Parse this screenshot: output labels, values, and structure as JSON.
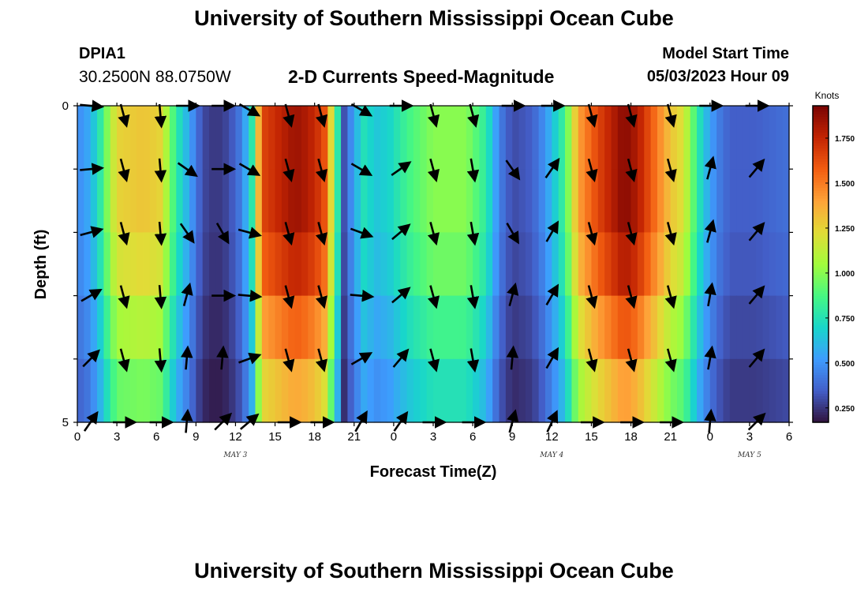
{
  "header": {
    "title": "University of Southern Mississippi Ocean Cube",
    "station_id": "DPIA1",
    "station_coords": "30.2500N  88.0750W",
    "subtitle": "2-D Currents Speed-Magnitude",
    "model_start_label": "Model Start Time",
    "model_start_value": "05/03/2023 Hour 09"
  },
  "footer": {
    "title": "University of Southern Mississippi Ocean Cube"
  },
  "chart_data": {
    "type": "heatmap",
    "title": "2-D Currents Speed-Magnitude",
    "xlabel": "Forecast Time(Z)",
    "ylabel": "Depth (ft)",
    "x_ticks": [
      "0",
      "3",
      "6",
      "9",
      "12",
      "15",
      "18",
      "21",
      "0",
      "3",
      "6",
      "9",
      "12",
      "15",
      "18",
      "21",
      "0",
      "3",
      "6"
    ],
    "x_range_hours": [
      0,
      54
    ],
    "date_labels": [
      {
        "text": "MAY 3",
        "hour": 12
      },
      {
        "text": "MAY 4",
        "hour": 36
      },
      {
        "text": "MAY 5",
        "hour": 51
      }
    ],
    "y_ticks": [
      "0",
      "5"
    ],
    "y_range": [
      0,
      5
    ],
    "depth_bands": 5,
    "colorbar": {
      "unit": "Knots",
      "range": [
        0.17,
        1.93
      ],
      "ticks": [
        "0.250",
        "0.500",
        "0.750",
        "1.000",
        "1.250",
        "1.500",
        "1.750"
      ],
      "tick_values": [
        0.25,
        0.5,
        0.75,
        1.0,
        1.25,
        1.5,
        1.75
      ],
      "colormap": "turbo"
    },
    "speed_profile_hours": [
      0,
      0.5,
      1.5,
      2.3,
      3,
      5,
      6.3,
      7.5,
      9.5,
      10.5,
      11.5,
      12.5,
      13.3,
      14,
      16.5,
      17.5,
      18.7,
      19.5,
      20.2,
      21,
      21.7,
      22.7,
      23.7,
      25,
      27,
      29.5,
      31,
      32,
      33,
      34.5,
      35.5,
      37,
      38,
      39.5,
      41.5,
      42.5,
      43.5,
      45,
      46,
      46.5,
      47.5,
      48.5,
      49.5,
      51.5,
      54
    ],
    "speed_profile_knots": [
      0.5,
      0.5,
      0.7,
      1.0,
      1.25,
      1.3,
      1.25,
      0.8,
      0.3,
      0.25,
      0.3,
      0.45,
      0.8,
      1.65,
      1.85,
      1.8,
      1.65,
      1.05,
      0.3,
      0.55,
      0.75,
      0.65,
      0.7,
      0.85,
      1.0,
      1.0,
      0.8,
      0.45,
      0.3,
      0.35,
      0.5,
      0.85,
      1.4,
      1.65,
      1.9,
      1.8,
      1.6,
      1.3,
      1.2,
      1.0,
      0.65,
      0.45,
      0.35,
      0.35,
      0.4
    ],
    "depth_factors": [
      1.0,
      1.0,
      0.95,
      0.85,
      0.75
    ],
    "vector_hours": [
      1,
      3.5,
      6.3,
      8.3,
      11,
      13,
      16,
      18.5,
      21.5,
      24.5,
      27,
      30,
      33,
      36,
      39,
      42,
      45,
      48,
      51.5
    ],
    "vector_angles_deg": [
      [
        5,
        75,
        85,
        0,
        0,
        30,
        75,
        75,
        30,
        0,
        75,
        75,
        0,
        0,
        75,
        75,
        75,
        0,
        0
      ],
      [
        -5,
        75,
        85,
        35,
        0,
        30,
        75,
        75,
        30,
        -35,
        75,
        80,
        55,
        -55,
        75,
        75,
        75,
        -75,
        -50
      ],
      [
        -15,
        75,
        85,
        55,
        60,
        15,
        75,
        75,
        20,
        -40,
        75,
        80,
        60,
        -60,
        75,
        75,
        75,
        -75,
        -50
      ],
      [
        -30,
        75,
        85,
        -75,
        0,
        5,
        75,
        75,
        5,
        -40,
        75,
        80,
        -75,
        -60,
        75,
        75,
        75,
        -80,
        -50
      ],
      [
        -45,
        75,
        85,
        -85,
        -85,
        -20,
        75,
        75,
        -30,
        -50,
        75,
        80,
        -85,
        -60,
        75,
        75,
        75,
        -80,
        -50
      ],
      [
        -55,
        0,
        0,
        -85,
        -45,
        -40,
        0,
        0,
        -60,
        -55,
        0,
        0,
        -75,
        -65,
        0,
        0,
        0,
        -85,
        -45
      ]
    ]
  }
}
